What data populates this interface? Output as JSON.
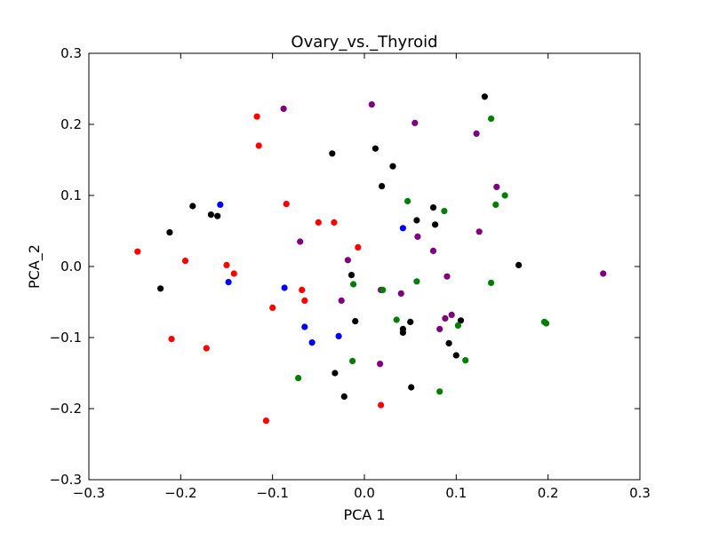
{
  "chart_data": {
    "type": "scatter",
    "title": "Ovary_vs._Thyroid",
    "xlabel": "PCA 1",
    "ylabel": "PCA_2",
    "xlim": [
      -0.3,
      0.3
    ],
    "ylim": [
      -0.3,
      0.3
    ],
    "x_ticks": [
      -0.3,
      -0.2,
      -0.1,
      0.0,
      0.1,
      0.2,
      0.3
    ],
    "y_ticks": [
      -0.3,
      -0.2,
      -0.1,
      0.0,
      0.1,
      0.2,
      0.3
    ],
    "x_tick_labels": [
      "−0.3",
      "−0.2",
      "−0.1",
      "0.0",
      "0.1",
      "0.2",
      "0.3"
    ],
    "y_tick_labels": [
      "−0.3",
      "−0.2",
      "−0.1",
      "0.0",
      "0.1",
      "0.2",
      "0.3"
    ],
    "grid": false,
    "legend": false,
    "series": [
      {
        "color": "#ff0000",
        "points": [
          [
            -0.117,
            0.211
          ],
          [
            -0.115,
            0.17
          ],
          [
            -0.085,
            0.088
          ],
          [
            -0.05,
            0.062
          ],
          [
            -0.033,
            0.062
          ],
          [
            -0.007,
            0.027
          ],
          [
            -0.247,
            0.021
          ],
          [
            -0.195,
            0.008
          ],
          [
            -0.15,
            0.002
          ],
          [
            -0.142,
            -0.01
          ],
          [
            -0.068,
            -0.033
          ],
          [
            -0.065,
            -0.048
          ],
          [
            -0.1,
            -0.058
          ],
          [
            -0.21,
            -0.102
          ],
          [
            -0.172,
            -0.115
          ],
          [
            -0.107,
            -0.217
          ],
          [
            0.018,
            -0.195
          ]
        ]
      },
      {
        "color": "#0000ff",
        "points": [
          [
            -0.157,
            0.087
          ],
          [
            -0.148,
            -0.022
          ],
          [
            -0.087,
            -0.03
          ],
          [
            -0.065,
            -0.085
          ],
          [
            -0.057,
            -0.107
          ],
          [
            -0.028,
            -0.098
          ],
          [
            0.042,
            0.054
          ]
        ]
      },
      {
        "color": "#000000",
        "points": [
          [
            0.131,
            0.239
          ],
          [
            0.012,
            0.166
          ],
          [
            -0.035,
            0.159
          ],
          [
            0.031,
            0.141
          ],
          [
            0.019,
            0.113
          ],
          [
            -0.187,
            0.085
          ],
          [
            -0.167,
            0.073
          ],
          [
            -0.16,
            0.071
          ],
          [
            -0.212,
            0.048
          ],
          [
            0.075,
            0.083
          ],
          [
            0.057,
            0.065
          ],
          [
            0.077,
            0.059
          ],
          [
            -0.222,
            -0.031
          ],
          [
            -0.014,
            -0.012
          ],
          [
            0.168,
            0.002
          ],
          [
            -0.01,
            -0.077
          ],
          [
            0.05,
            -0.078
          ],
          [
            0.042,
            -0.088
          ],
          [
            0.042,
            -0.093
          ],
          [
            0.105,
            -0.076
          ],
          [
            0.092,
            -0.108
          ],
          [
            0.1,
            -0.125
          ],
          [
            -0.032,
            -0.15
          ],
          [
            -0.022,
            -0.183
          ],
          [
            0.051,
            -0.17
          ]
        ]
      },
      {
        "color": "#800080",
        "points": [
          [
            -0.088,
            0.222
          ],
          [
            0.008,
            0.228
          ],
          [
            0.055,
            0.202
          ],
          [
            0.122,
            0.187
          ],
          [
            0.144,
            0.112
          ],
          [
            0.125,
            0.049
          ],
          [
            -0.07,
            0.035
          ],
          [
            0.058,
            0.042
          ],
          [
            -0.018,
            0.009
          ],
          [
            0.075,
            0.022
          ],
          [
            0.018,
            -0.033
          ],
          [
            0.04,
            -0.038
          ],
          [
            -0.025,
            -0.048
          ],
          [
            0.09,
            -0.014
          ],
          [
            0.095,
            -0.068
          ],
          [
            0.088,
            -0.073
          ],
          [
            0.082,
            -0.088
          ],
          [
            0.017,
            -0.137
          ],
          [
            0.26,
            -0.01
          ]
        ]
      },
      {
        "color": "#008000",
        "points": [
          [
            0.138,
            0.208
          ],
          [
            0.047,
            0.092
          ],
          [
            0.087,
            0.078
          ],
          [
            0.143,
            0.087
          ],
          [
            0.153,
            0.1
          ],
          [
            0.057,
            -0.021
          ],
          [
            -0.012,
            -0.025
          ],
          [
            0.02,
            -0.033
          ],
          [
            0.138,
            -0.023
          ],
          [
            0.035,
            -0.075
          ],
          [
            0.102,
            -0.083
          ],
          [
            0.196,
            -0.078
          ],
          [
            0.198,
            -0.08
          ],
          [
            0.11,
            -0.132
          ],
          [
            -0.013,
            -0.133
          ],
          [
            -0.072,
            -0.157
          ],
          [
            0.082,
            -0.176
          ]
        ]
      }
    ]
  }
}
